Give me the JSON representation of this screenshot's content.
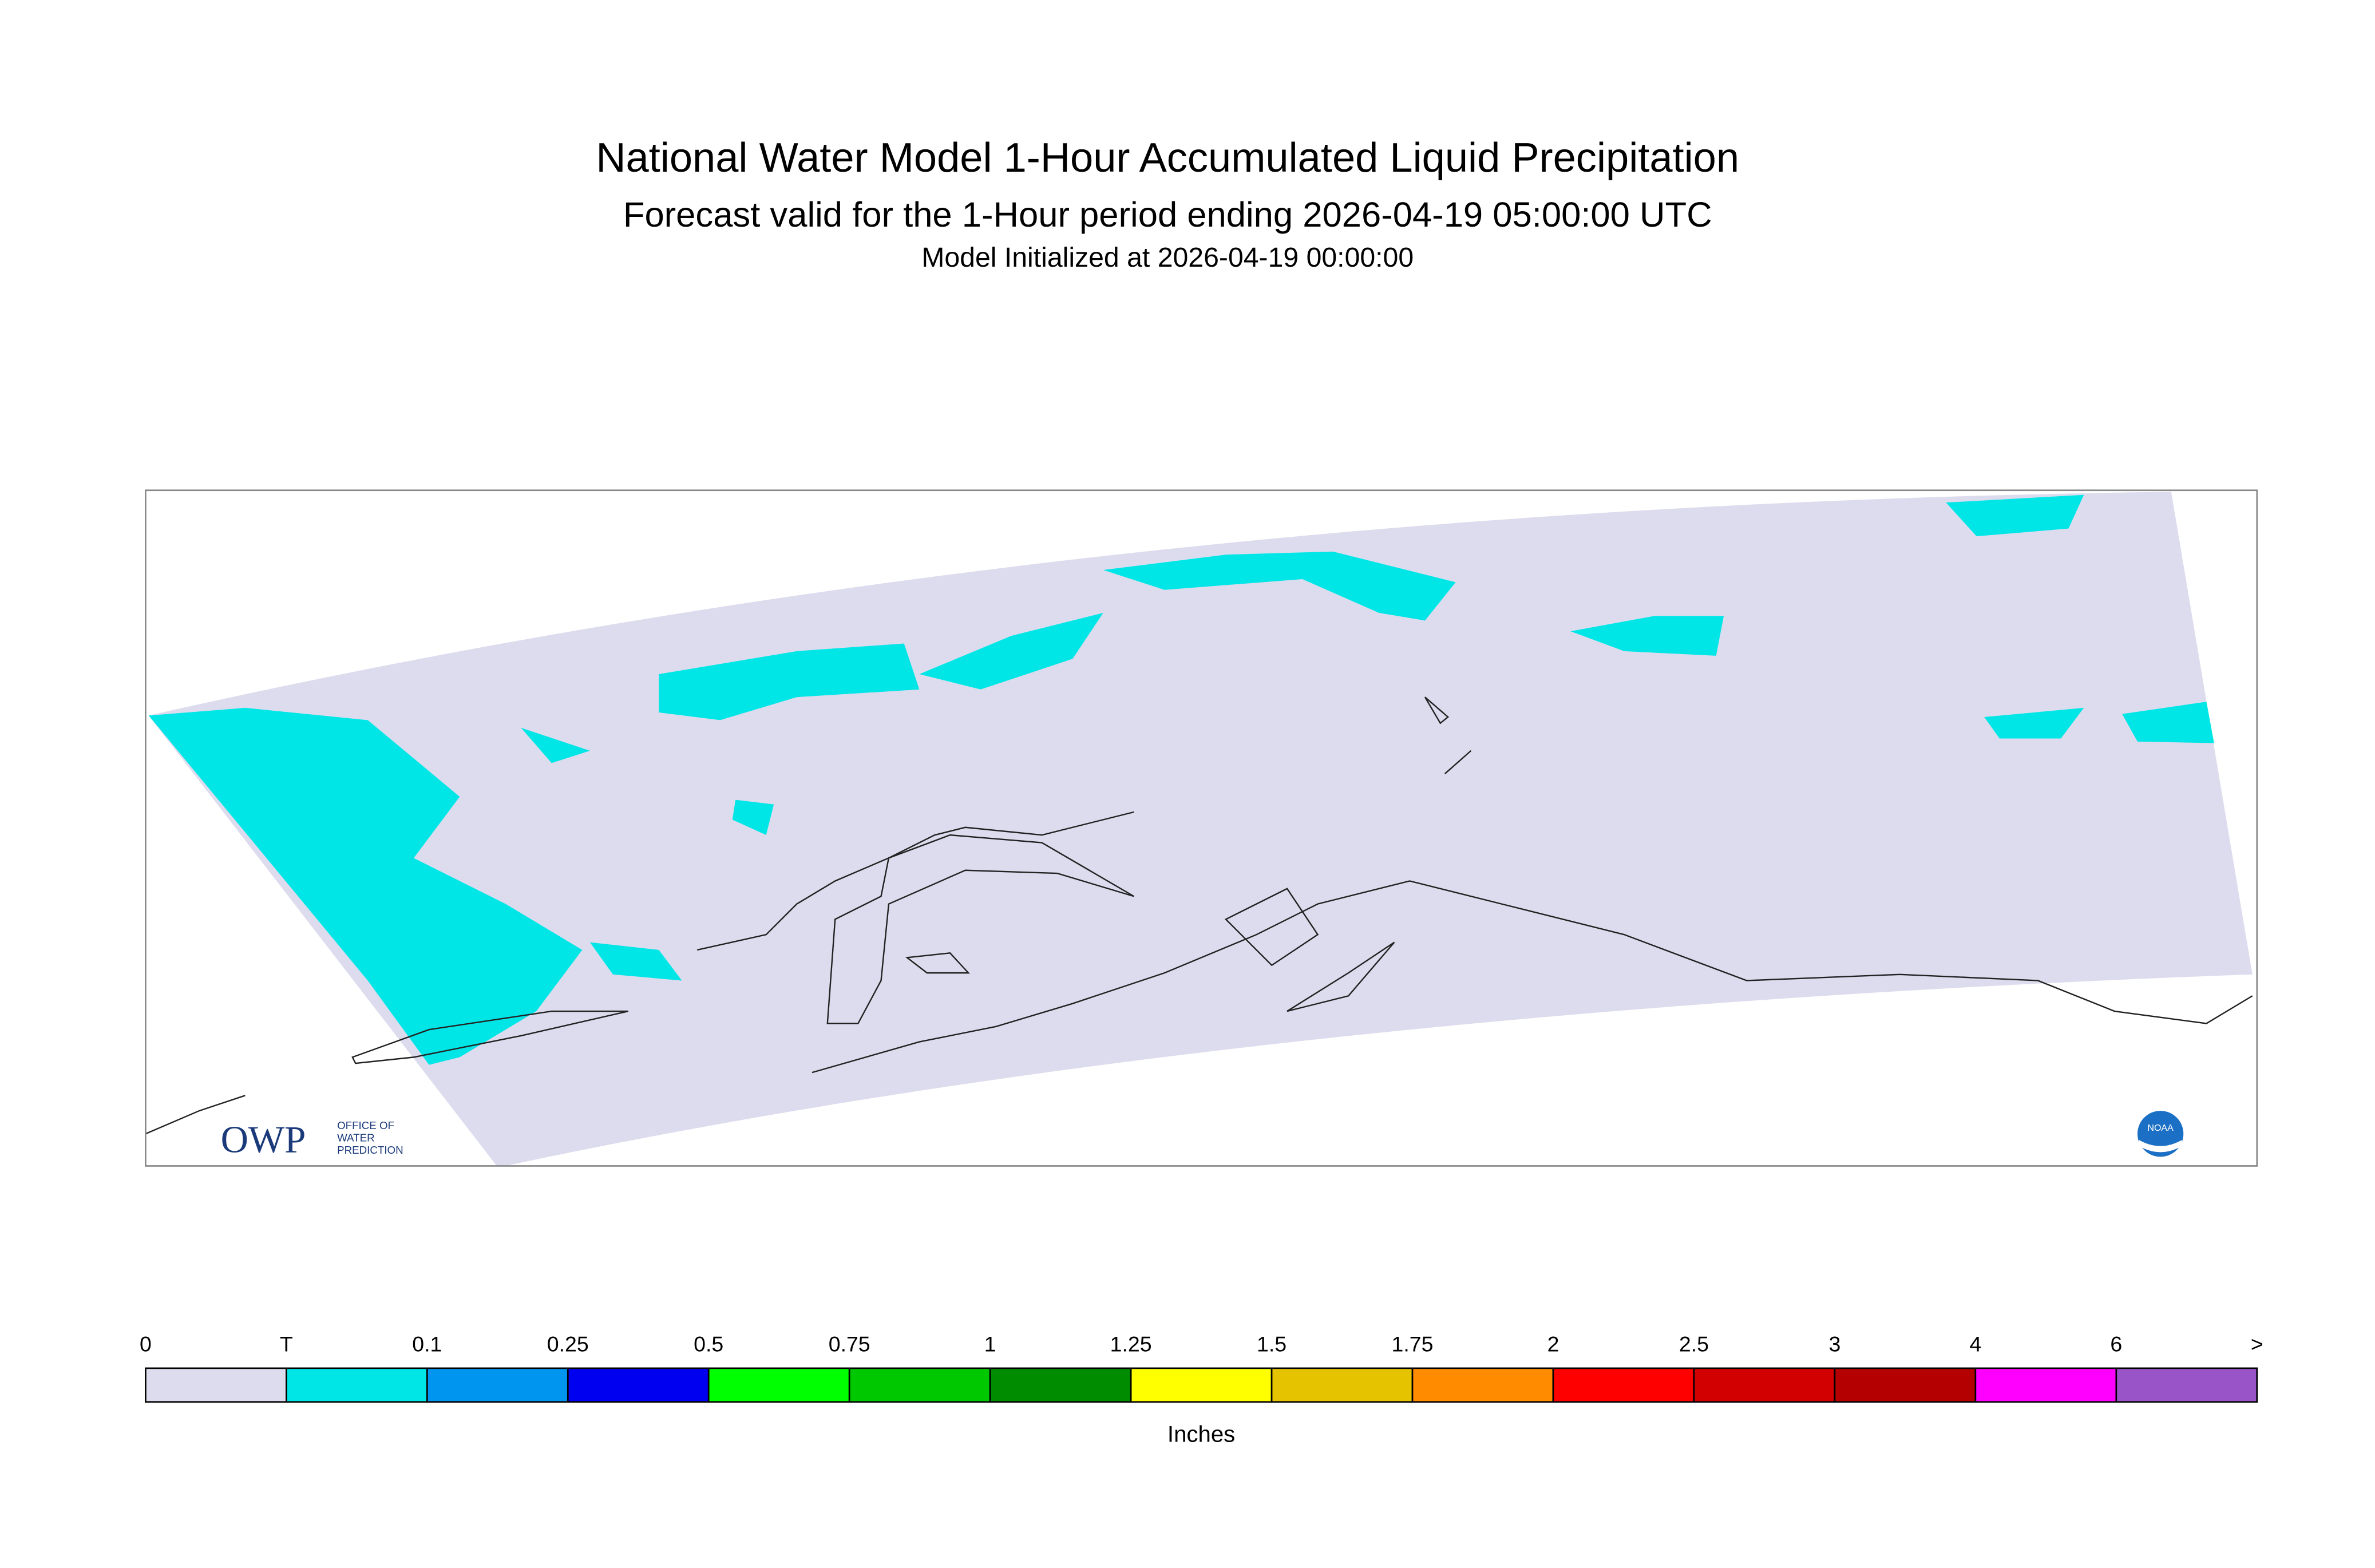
{
  "title": "National Water Model 1-Hour Accumulated Liquid Precipitation",
  "subtitle": "Forecast valid for the 1-Hour period ending 2026-04-19 05:00:00 UTC",
  "init": "Model Initialized at 2026-04-19 00:00:00",
  "map": {
    "domain_color": "#dcdcee",
    "precip_color": "#00e6e6"
  },
  "legend": {
    "labels": [
      "0",
      "T",
      "0.1",
      "0.25",
      "0.5",
      "0.75",
      "1",
      "1.25",
      "1.5",
      "1.75",
      "2",
      "2.5",
      "3",
      "4",
      "6",
      ">"
    ],
    "colors": [
      "#dcdcee",
      "#00e6e6",
      "#0096f0",
      "#0000f0",
      "#00ff00",
      "#00c800",
      "#008c00",
      "#ffff00",
      "#e6c300",
      "#ff8c00",
      "#ff0000",
      "#d20000",
      "#b40000",
      "#ff00ff",
      "#9955c8"
    ],
    "unit": "Inches"
  },
  "logos": {
    "owp": "OWP",
    "owp_text": [
      "OFFICE OF",
      "WATER",
      "PREDICTION"
    ],
    "noaa": "NOAA"
  }
}
